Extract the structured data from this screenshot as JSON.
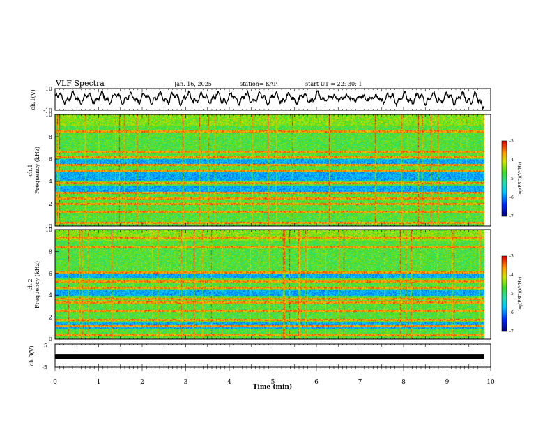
{
  "header": {
    "title": "VLF Spectra",
    "date": "Jan. 16, 2025",
    "station": "station= KAP",
    "start": "start  UT =   22: 30: 1"
  },
  "chart_data": [
    {
      "type": "line",
      "name": "ch1-waveform",
      "ylabel": "ch.1(V)",
      "ylim": [
        -10,
        10
      ],
      "yticks": [
        "10",
        "-10"
      ],
      "xlim": [
        0,
        10
      ]
    },
    {
      "type": "heatmap",
      "name": "ch1-spectrogram",
      "ylabel_line1": "ch.1",
      "ylabel_line2": "Frequency (kHz)",
      "ylim": [
        0,
        10
      ],
      "yticks": [
        "0",
        "2",
        "4",
        "6",
        "8",
        "10"
      ],
      "xlim": [
        0,
        9.85
      ],
      "color_range": [
        -7,
        -3
      ],
      "colorbar_ticks": [
        "-3",
        "-4",
        "-5",
        "-6",
        "-7"
      ],
      "colorbar_label": "log(PSD)(V²/Hz)",
      "bands_khz": [
        0.3,
        1.3,
        2.0,
        2.5,
        3.0,
        3.9,
        5.0,
        5.5,
        6.2,
        6.7,
        8.5
      ],
      "quiet_bands_khz": [
        [
          3.0,
          3.6
        ],
        [
          4.1,
          4.8
        ],
        [
          5.6,
          6.0
        ]
      ]
    },
    {
      "type": "heatmap",
      "name": "ch2-spectrogram",
      "ylabel_line1": "ch.2",
      "ylabel_line2": "Frequency (kHz)",
      "ylim": [
        0,
        10
      ],
      "yticks": [
        "0",
        "2",
        "4",
        "6",
        "8",
        "10"
      ],
      "xlim": [
        0,
        9.85
      ],
      "color_range": [
        -7,
        -3
      ],
      "colorbar_ticks": [
        "-3",
        "-4",
        "-5",
        "-6",
        "-7"
      ],
      "colorbar_label": "log(PSD)(V²/Hz)",
      "bands_khz": [
        0.4,
        1.2,
        1.8,
        2.6,
        3.4,
        3.7,
        4.7,
        5.3,
        6.1,
        8.4,
        9.3
      ],
      "quiet_bands_khz": [
        [
          1.0,
          1.5
        ],
        [
          4.0,
          4.5
        ],
        [
          5.6,
          6.0
        ]
      ]
    },
    {
      "type": "line",
      "name": "ch3-signal",
      "ylabel": "ch.3(V)",
      "ylim": [
        -5,
        5
      ],
      "yticks": [
        "5",
        "-5"
      ],
      "level": -0.5,
      "xlim": [
        0,
        9.85
      ]
    }
  ],
  "xaxis": {
    "label": "Time (min)",
    "range": [
      0,
      10
    ],
    "ticks": [
      "0",
      "1",
      "2",
      "3",
      "4",
      "5",
      "6",
      "7",
      "8",
      "9",
      "10"
    ]
  }
}
